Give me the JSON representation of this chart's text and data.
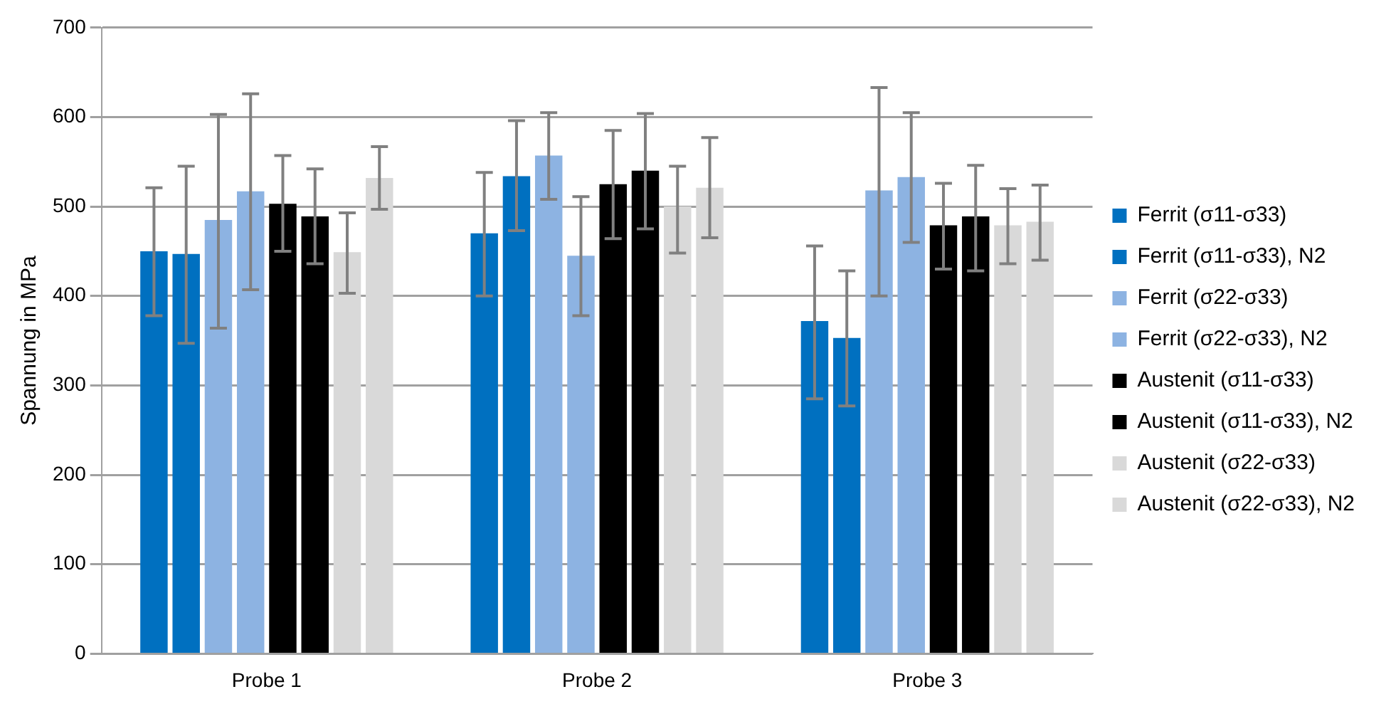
{
  "chart_data": {
    "type": "bar",
    "ylabel": "Spannung in MPa",
    "categories": [
      "Probe 1",
      "Probe 2",
      "Probe 3"
    ],
    "ylim": [
      0,
      700
    ],
    "yticks": [
      0,
      100,
      200,
      300,
      400,
      500,
      600,
      700
    ],
    "grid": "y",
    "legend": "right",
    "series": [
      {
        "name": "Ferrit (σ11-σ33)",
        "color": "#0070c0",
        "values": [
          450,
          470,
          372
        ],
        "errors": [
          [
            378,
            521
          ],
          [
            400,
            538
          ],
          [
            285,
            456
          ]
        ]
      },
      {
        "name": "Ferrit (σ11-σ33), N2",
        "color": "#0070c0",
        "values": [
          447,
          534,
          353
        ],
        "errors": [
          [
            347,
            545
          ],
          [
            473,
            596
          ],
          [
            277,
            428
          ]
        ]
      },
      {
        "name": "Ferrit (σ22-σ33)",
        "color": "#8db3e2",
        "values": [
          485,
          557,
          518
        ],
        "errors": [
          [
            364,
            603
          ],
          [
            508,
            605
          ],
          [
            400,
            633
          ]
        ]
      },
      {
        "name": "Ferrit (σ22-σ33), N2",
        "color": "#8db3e2",
        "values": [
          517,
          445,
          533
        ],
        "errors": [
          [
            407,
            626
          ],
          [
            378,
            511
          ],
          [
            460,
            605
          ]
        ]
      },
      {
        "name": "Austenit (σ11-σ33)",
        "color": "#000000",
        "values": [
          503,
          525,
          479
        ],
        "errors": [
          [
            450,
            557
          ],
          [
            464,
            585
          ],
          [
            430,
            526
          ]
        ]
      },
      {
        "name": "Austenit (σ11-σ33), N2",
        "color": "#000000",
        "values": [
          489,
          540,
          489
        ],
        "errors": [
          [
            436,
            542
          ],
          [
            475,
            604
          ],
          [
            428,
            546
          ]
        ]
      },
      {
        "name": "Austenit (σ22-σ33)",
        "color": "#d9d9d9",
        "values": [
          449,
          500,
          479
        ],
        "errors": [
          [
            403,
            493
          ],
          [
            448,
            545
          ],
          [
            436,
            520
          ]
        ]
      },
      {
        "name": "Austenit (σ22-σ33), N2",
        "color": "#d9d9d9",
        "values": [
          532,
          521,
          483
        ],
        "errors": [
          [
            497,
            567
          ],
          [
            465,
            577
          ],
          [
            440,
            524
          ]
        ]
      }
    ]
  }
}
